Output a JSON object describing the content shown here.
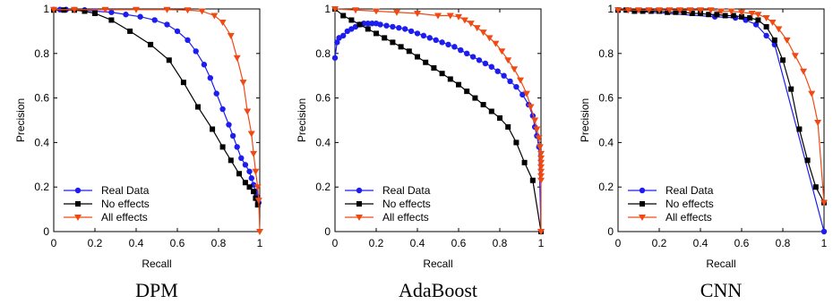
{
  "colors": {
    "real": "#1d1df0",
    "none": "#000000",
    "all": "#f04a14"
  },
  "chart_data": [
    {
      "type": "line",
      "caption": "DPM",
      "xlabel": "Recall",
      "ylabel": "Precision",
      "xlim": [
        0,
        1
      ],
      "ylim": [
        0,
        1
      ],
      "xticks": [
        "0",
        "0.2",
        "0.4",
        "0.6",
        "0.8",
        "1"
      ],
      "yticks": [
        "0",
        "0.2",
        "0.4",
        "0.6",
        "0.8",
        "1"
      ],
      "grid": false,
      "legend_position": "bottom-left",
      "series": [
        {
          "name": "Real Data",
          "marker": "circle",
          "color": "#1d1df0",
          "x": [
            0,
            0.03,
            0.06,
            0.1,
            0.15,
            0.2,
            0.28,
            0.35,
            0.42,
            0.49,
            0.55,
            0.6,
            0.65,
            0.69,
            0.73,
            0.76,
            0.79,
            0.82,
            0.85,
            0.87,
            0.89,
            0.91,
            0.93,
            0.95,
            0.96,
            0.97,
            0.98,
            0.985,
            0.99,
            0.995
          ],
          "y": [
            0.997,
            0.997,
            0.997,
            0.996,
            0.995,
            0.99,
            0.985,
            0.975,
            0.965,
            0.95,
            0.93,
            0.9,
            0.86,
            0.81,
            0.75,
            0.69,
            0.62,
            0.55,
            0.48,
            0.43,
            0.38,
            0.33,
            0.3,
            0.27,
            0.24,
            0.21,
            0.18,
            0.16,
            0.14,
            0.13
          ]
        },
        {
          "name": "No effects",
          "marker": "square",
          "color": "#000000",
          "x": [
            0,
            0.05,
            0.1,
            0.15,
            0.2,
            0.28,
            0.37,
            0.47,
            0.56,
            0.63,
            0.7,
            0.77,
            0.82,
            0.86,
            0.9,
            0.93,
            0.95,
            0.97,
            0.98,
            0.99
          ],
          "y": [
            0.995,
            0.995,
            0.995,
            0.99,
            0.98,
            0.95,
            0.9,
            0.84,
            0.77,
            0.67,
            0.56,
            0.46,
            0.38,
            0.32,
            0.26,
            0.22,
            0.2,
            0.18,
            0.15,
            0.12
          ]
        },
        {
          "name": "All effects",
          "marker": "triangle-down",
          "color": "#f04a14",
          "x": [
            0,
            0.1,
            0.25,
            0.4,
            0.55,
            0.65,
            0.72,
            0.78,
            0.82,
            0.86,
            0.89,
            0.92,
            0.94,
            0.96,
            0.97,
            0.98,
            0.99,
            0.995,
            1.0
          ],
          "y": [
            0.997,
            0.997,
            0.997,
            0.997,
            0.997,
            0.995,
            0.99,
            0.97,
            0.94,
            0.88,
            0.78,
            0.67,
            0.54,
            0.44,
            0.35,
            0.27,
            0.2,
            0.14,
            0.0
          ]
        }
      ]
    },
    {
      "type": "line",
      "caption": "AdaBoost",
      "xlabel": "Recall",
      "ylabel": "Precision",
      "xlim": [
        0,
        1
      ],
      "ylim": [
        0,
        1
      ],
      "xticks": [
        "0",
        "0.2",
        "0.4",
        "0.6",
        "0.8",
        "1"
      ],
      "yticks": [
        "0",
        "0.2",
        "0.4",
        "0.6",
        "0.8",
        "1"
      ],
      "grid": false,
      "legend_position": "bottom-left",
      "series": [
        {
          "name": "Real Data",
          "marker": "circle",
          "color": "#1d1df0",
          "x": [
            0,
            0.01,
            0.02,
            0.04,
            0.06,
            0.08,
            0.1,
            0.12,
            0.14,
            0.16,
            0.18,
            0.2,
            0.22,
            0.25,
            0.28,
            0.31,
            0.34,
            0.37,
            0.4,
            0.43,
            0.46,
            0.49,
            0.52,
            0.55,
            0.58,
            0.61,
            0.64,
            0.67,
            0.7,
            0.73,
            0.76,
            0.79,
            0.82,
            0.85,
            0.88,
            0.91,
            0.94,
            0.96,
            0.97,
            0.98,
            0.99,
            1.0
          ],
          "y": [
            0.78,
            0.85,
            0.87,
            0.88,
            0.9,
            0.91,
            0.92,
            0.93,
            0.935,
            0.935,
            0.935,
            0.935,
            0.93,
            0.925,
            0.92,
            0.915,
            0.91,
            0.9,
            0.89,
            0.88,
            0.87,
            0.86,
            0.85,
            0.84,
            0.83,
            0.815,
            0.8,
            0.785,
            0.77,
            0.755,
            0.74,
            0.72,
            0.7,
            0.675,
            0.65,
            0.615,
            0.57,
            0.52,
            0.47,
            0.43,
            0.38,
            0.0
          ]
        },
        {
          "name": "No effects",
          "marker": "square",
          "color": "#000000",
          "x": [
            0,
            0.04,
            0.08,
            0.12,
            0.16,
            0.2,
            0.24,
            0.28,
            0.32,
            0.36,
            0.4,
            0.44,
            0.48,
            0.52,
            0.56,
            0.6,
            0.64,
            0.68,
            0.72,
            0.76,
            0.8,
            0.84,
            0.88,
            0.92,
            0.96,
            1.0
          ],
          "y": [
            1.0,
            0.97,
            0.95,
            0.93,
            0.91,
            0.89,
            0.87,
            0.85,
            0.83,
            0.81,
            0.785,
            0.76,
            0.735,
            0.71,
            0.685,
            0.66,
            0.63,
            0.6,
            0.57,
            0.54,
            0.51,
            0.47,
            0.4,
            0.31,
            0.23,
            0.0
          ]
        },
        {
          "name": "All effects",
          "marker": "triangle-down",
          "color": "#f04a14",
          "x": [
            0,
            0.1,
            0.2,
            0.3,
            0.4,
            0.5,
            0.56,
            0.6,
            0.63,
            0.66,
            0.69,
            0.72,
            0.75,
            0.78,
            0.81,
            0.84,
            0.87,
            0.9,
            0.93,
            0.95,
            0.97,
            0.98,
            0.99,
            0.995,
            1.0,
            1.0,
            1.0,
            1.0,
            1.0,
            1.0,
            1.0,
            1.0,
            1.0
          ],
          "y": [
            1.0,
            0.995,
            0.99,
            0.985,
            0.98,
            0.97,
            0.97,
            0.965,
            0.95,
            0.935,
            0.915,
            0.895,
            0.87,
            0.845,
            0.81,
            0.77,
            0.73,
            0.68,
            0.62,
            0.56,
            0.5,
            0.46,
            0.42,
            0.38,
            0.35,
            0.33,
            0.31,
            0.29,
            0.27,
            0.25,
            0.23,
            0.0,
            0.0
          ]
        }
      ]
    },
    {
      "type": "line",
      "caption": "CNN",
      "xlabel": "Recall",
      "ylabel": "Precision",
      "xlim": [
        0,
        1
      ],
      "ylim": [
        0,
        1
      ],
      "xticks": [
        "0",
        "0.2",
        "0.4",
        "0.6",
        "0.8",
        "1"
      ],
      "yticks": [
        "0",
        "0.2",
        "0.4",
        "0.6",
        "0.8",
        "1"
      ],
      "grid": false,
      "legend_position": "bottom-left",
      "series": [
        {
          "name": "Real Data",
          "marker": "circle",
          "color": "#1d1df0",
          "x": [
            0,
            0.47,
            0.57,
            0.62,
            0.67,
            0.72,
            0.76,
            1.0
          ],
          "y": [
            0.995,
            0.965,
            0.96,
            0.95,
            0.93,
            0.88,
            0.84,
            0.0
          ]
        },
        {
          "name": "No effects",
          "marker": "square",
          "color": "#000000",
          "x": [
            0,
            0.04,
            0.08,
            0.12,
            0.16,
            0.2,
            0.24,
            0.28,
            0.32,
            0.36,
            0.4,
            0.44,
            0.48,
            0.52,
            0.56,
            0.6,
            0.64,
            0.68,
            0.72,
            0.76,
            0.8,
            0.84,
            0.88,
            0.92,
            0.96,
            1.0
          ],
          "y": [
            0.995,
            0.995,
            0.99,
            0.99,
            0.99,
            0.99,
            0.985,
            0.985,
            0.985,
            0.98,
            0.98,
            0.975,
            0.975,
            0.97,
            0.97,
            0.965,
            0.96,
            0.95,
            0.92,
            0.86,
            0.77,
            0.64,
            0.46,
            0.32,
            0.2,
            0.13
          ]
        },
        {
          "name": "All effects",
          "marker": "triangle-down",
          "color": "#f04a14",
          "x": [
            0,
            0.05,
            0.1,
            0.15,
            0.2,
            0.25,
            0.3,
            0.35,
            0.4,
            0.45,
            0.5,
            0.55,
            0.6,
            0.65,
            0.68,
            0.72,
            0.75,
            0.78,
            0.82,
            0.86,
            0.9,
            0.94,
            0.97,
            1.0
          ],
          "y": [
            0.995,
            0.995,
            0.995,
            0.995,
            0.995,
            0.995,
            0.995,
            0.995,
            0.995,
            0.995,
            0.99,
            0.99,
            0.985,
            0.98,
            0.975,
            0.96,
            0.94,
            0.91,
            0.86,
            0.79,
            0.72,
            0.62,
            0.49,
            0.13
          ]
        }
      ]
    }
  ]
}
